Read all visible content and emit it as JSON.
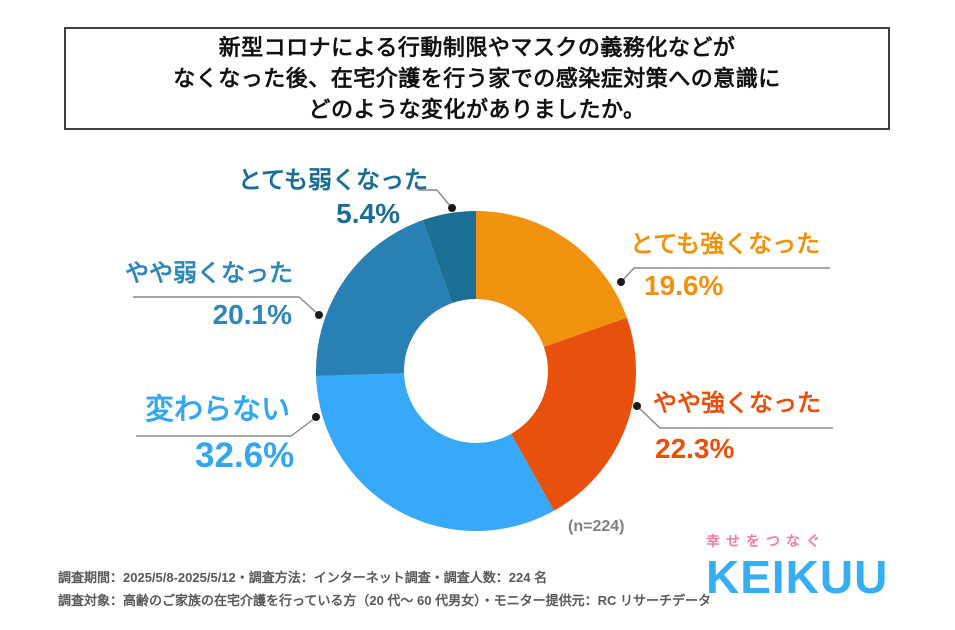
{
  "title": {
    "lines": [
      "新型コロナによる行動制限やマスクの義務化などが",
      "なくなった後、在宅介護を行う家での感染症対策への意識に",
      "どのような変化がありましたか。"
    ]
  },
  "chart_data": {
    "type": "pie",
    "subtype": "donut",
    "title": "新型コロナによる行動制限やマスクの義務化などがなくなった後、在宅介護を行う家での感染症対策への意識にどのような変化がありましたか。",
    "sample_label": "(n=224)",
    "sample_size": 224,
    "start_angle_deg": 0,
    "direction": "clockwise",
    "legend_position": "around-chart",
    "slices": [
      {
        "label": "とても強くなった",
        "value": 19.6,
        "display": "19.6%",
        "color": "#F0920D",
        "text_color": "#F0920D"
      },
      {
        "label": "やや強くなった",
        "value": 22.3,
        "display": "22.3%",
        "color": "#E8500E",
        "text_color": "#E8500E"
      },
      {
        "label": "変わらない",
        "value": 32.6,
        "display": "32.6%",
        "color": "#38A8F8",
        "text_color": "#35A7F0"
      },
      {
        "label": "やや弱くなった",
        "value": 20.1,
        "display": "20.1%",
        "color": "#2980B5",
        "text_color": "#2E86B9"
      },
      {
        "label": "とても弱くなった",
        "value": 5.4,
        "display": "5.4%",
        "color": "#1C6F94",
        "text_color": "#1A6E93"
      }
    ]
  },
  "footer": {
    "line1": "調査期間：2025/5/8-2025/5/12・調査方法：インターネット調査・調査人数：224 名",
    "line2": "調査対象：高齢のご家族の在宅介護を行っている方（20 代～ 60 代男女）・モニター提供元：RC リサーチデータ"
  },
  "logo": {
    "tagline": "幸せをつなぐ",
    "name": "KEIKUU",
    "tagline_color": "#F07DA6",
    "name_color": "#35AEF2"
  }
}
